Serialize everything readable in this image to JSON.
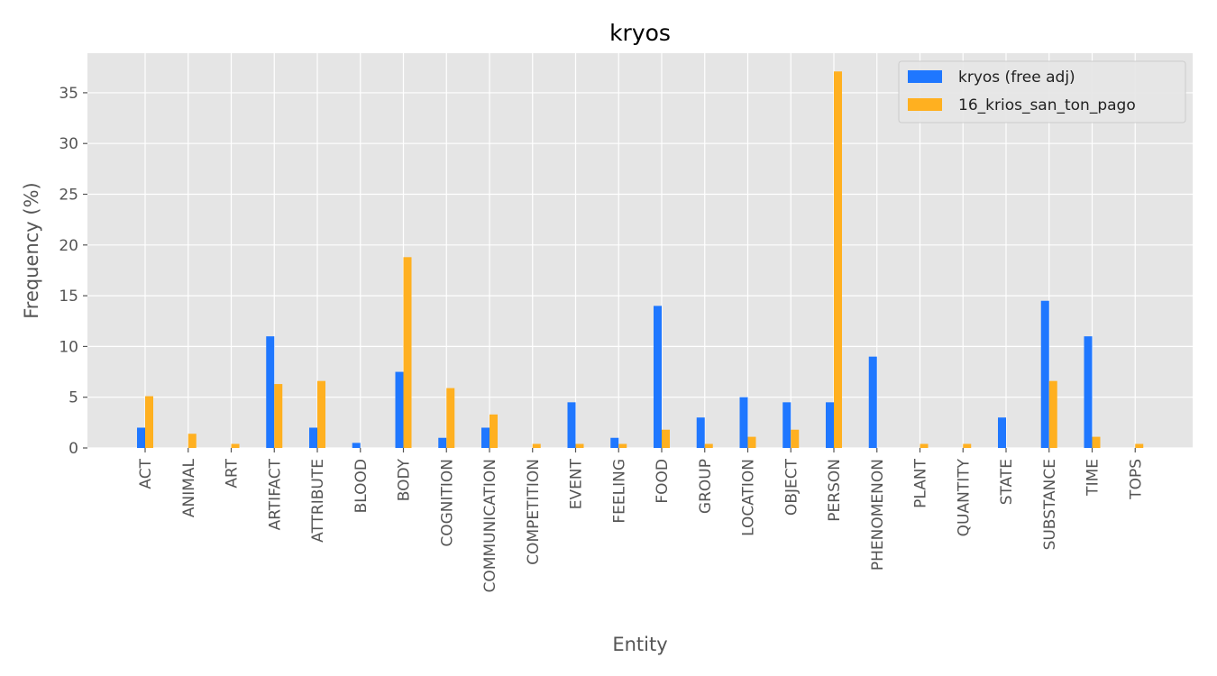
{
  "chart_data": {
    "type": "bar",
    "title": "kryos",
    "xlabel": "Entity",
    "ylabel": "Frequency (%)",
    "ylim": [
      0,
      38.9
    ],
    "yticks": [
      0,
      5,
      10,
      15,
      20,
      25,
      30,
      35
    ],
    "grid": true,
    "legend_position": "top-right",
    "categories": [
      "ACT",
      "ANIMAL",
      "ART",
      "ARTIFACT",
      "ATTRIBUTE",
      "BLOOD",
      "BODY",
      "COGNITION",
      "COMMUNICATION",
      "COMPETITION",
      "EVENT",
      "FEELING",
      "FOOD",
      "GROUP",
      "LOCATION",
      "OBJECT",
      "PERSON",
      "PHENOMENON",
      "PLANT",
      "QUANTITY",
      "STATE",
      "SUBSTANCE",
      "TIME",
      "TOPS"
    ],
    "series": [
      {
        "name": "kryos (free adj)",
        "color": "#1f77ff",
        "values": [
          2.0,
          0,
          0,
          11.0,
          2.0,
          0.5,
          7.5,
          1.0,
          2.0,
          0,
          4.5,
          1.0,
          14.0,
          3.0,
          5.0,
          4.5,
          4.5,
          9.0,
          0,
          0,
          3.0,
          14.5,
          11.0,
          0
        ]
      },
      {
        "name": "16_krios_san_ton_pago",
        "color": "#ffb020",
        "values": [
          5.1,
          1.4,
          0.4,
          6.3,
          6.6,
          0,
          18.8,
          5.9,
          3.3,
          0.4,
          0.4,
          0.4,
          1.8,
          0.4,
          1.1,
          1.8,
          37.1,
          0,
          0.4,
          0.4,
          0,
          6.6,
          1.1,
          0.4
        ]
      }
    ],
    "background_color": "#e5e5e5",
    "grid_color": "#ffffff"
  }
}
